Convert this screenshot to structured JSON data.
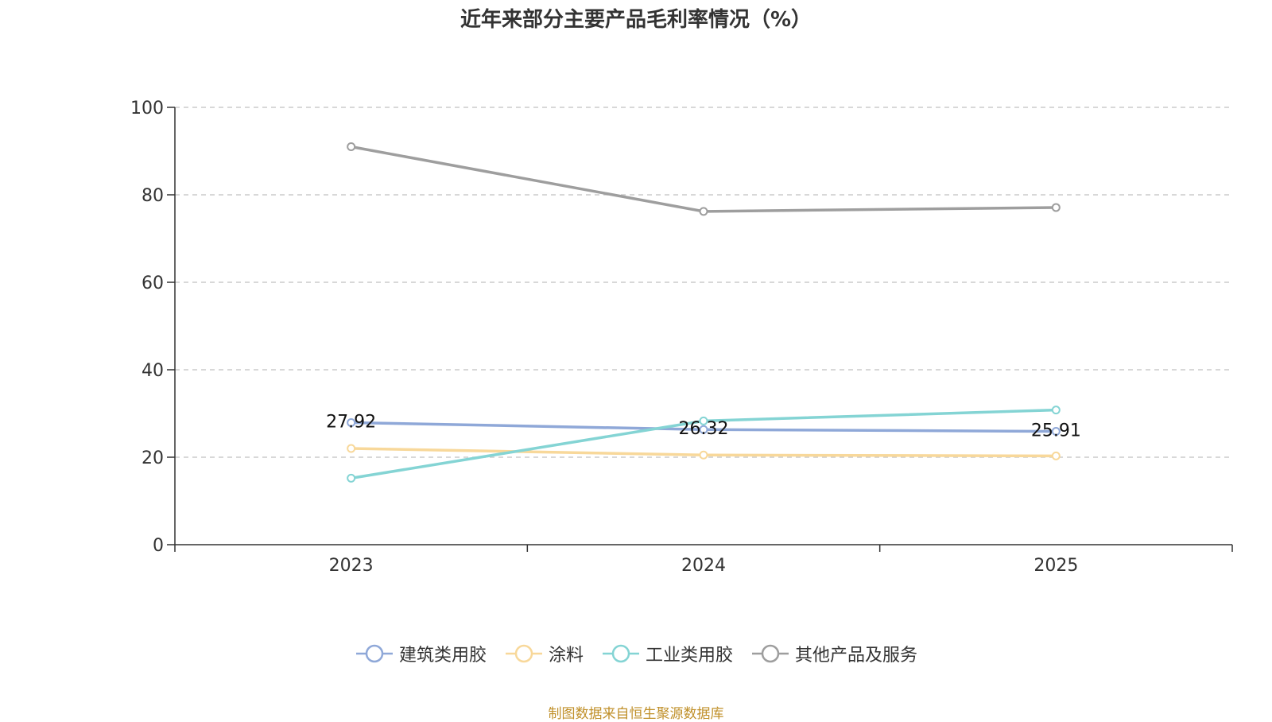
{
  "chart_data": {
    "type": "line",
    "title": "近年来部分主要产品毛利率情况（%）",
    "categories": [
      "2023",
      "2024",
      "2025"
    ],
    "ylim": [
      0,
      100
    ],
    "yticks": [
      0,
      20,
      40,
      60,
      80,
      100
    ],
    "grid": true,
    "legend_position": "bottom",
    "series": [
      {
        "name": "建筑类用胶",
        "values": [
          27.92,
          26.32,
          25.91
        ],
        "color": "#8fa8d8",
        "show_labels": true
      },
      {
        "name": "涂料",
        "values": [
          22.0,
          20.5,
          20.3
        ],
        "color": "#f8d89a",
        "show_labels": false
      },
      {
        "name": "工业类用胶",
        "values": [
          15.2,
          28.3,
          30.8
        ],
        "color": "#84d4d4",
        "show_labels": false
      },
      {
        "name": "其他产品及服务",
        "values": [
          91.0,
          76.2,
          77.1
        ],
        "color": "#9e9e9e",
        "show_labels": false
      }
    ]
  },
  "footer": {
    "source": "制图数据来自恒生聚源数据库"
  }
}
